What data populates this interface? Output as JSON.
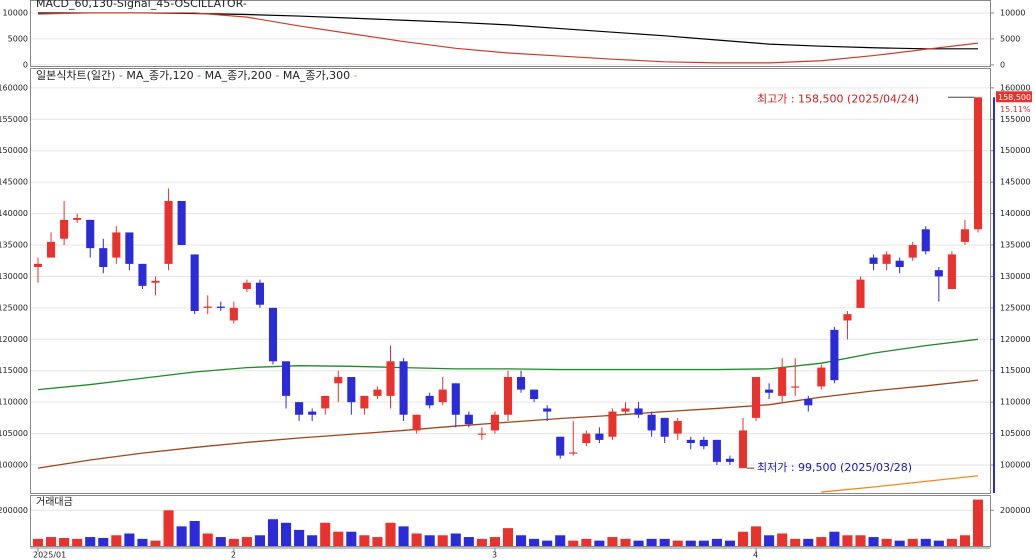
{
  "chart_data": [
    {
      "type": "line",
      "title": "MACD_60,130-Signal_45-OSCILLATOR-",
      "x": [
        0,
        4,
        8,
        12,
        16,
        20,
        24,
        28,
        32,
        36,
        40,
        44,
        48,
        52,
        56,
        60,
        64,
        68,
        72
      ],
      "series": [
        {
          "color": "#000000",
          "values": [
            10000,
            10000,
            10000,
            9900,
            9700,
            9400,
            9000,
            8600,
            8200,
            7700,
            7000,
            6300,
            5600,
            4800,
            4000,
            3600,
            3300,
            3100,
            3100
          ]
        },
        {
          "color": "#d03a2a",
          "values": [
            9800,
            10000,
            10000,
            10000,
            9200,
            7500,
            6000,
            4500,
            3200,
            2300,
            1700,
            1100,
            600,
            400,
            400,
            800,
            1800,
            3000,
            4200
          ]
        }
      ],
      "ylim": [
        -400,
        12300
      ],
      "yticks": [
        0,
        5000,
        10000
      ]
    },
    {
      "type": "candlestick",
      "title": "일본식차트(일간)",
      "categories": [
        "2025/01",
        null,
        null,
        null,
        null,
        null,
        null,
        null,
        null,
        null,
        null,
        null,
        null,
        null,
        null,
        "2",
        null,
        null,
        null,
        null,
        null,
        null,
        null,
        null,
        null,
        null,
        null,
        null,
        null,
        null,
        null,
        null,
        null,
        null,
        null,
        "3",
        null,
        null,
        null,
        null,
        null,
        null,
        null,
        null,
        null,
        null,
        null,
        null,
        null,
        null,
        null,
        null,
        null,
        null,
        null,
        "4",
        null,
        null,
        null,
        null,
        null,
        null,
        null,
        null,
        null,
        null,
        null,
        null,
        null,
        null,
        null,
        null,
        null
      ],
      "open": [
        131500,
        133000,
        136000,
        139000,
        139000,
        134500,
        133000,
        137000,
        132000,
        129000,
        132000,
        142000,
        133500,
        125000,
        125200,
        123000,
        128000,
        129000,
        125000,
        116500,
        110000,
        108500,
        109000,
        113000,
        114000,
        109000,
        111000,
        111000,
        116500,
        105500,
        111000,
        110000,
        113000,
        108000,
        105000,
        105500,
        108000,
        114000,
        112000,
        109000,
        104500,
        102000,
        103500,
        105000,
        104500,
        108500,
        109000,
        108000,
        107500,
        105000,
        104000,
        104000,
        104000,
        101000,
        99500,
        107500,
        112000,
        111000,
        112500,
        110500,
        112500,
        121500,
        123000,
        125000,
        133000,
        132000,
        132500,
        133000,
        137500,
        131000,
        128000,
        135500,
        137500
      ],
      "high": [
        133000,
        137000,
        142000,
        140000,
        139000,
        136000,
        138000,
        137000,
        132000,
        130000,
        144000,
        142000,
        133500,
        127000,
        126000,
        126000,
        129500,
        129500,
        125000,
        116500,
        110000,
        109000,
        111000,
        115000,
        114000,
        111000,
        112500,
        119000,
        117000,
        108000,
        111500,
        114000,
        113000,
        108500,
        106000,
        108500,
        115000,
        115000,
        112000,
        109500,
        104500,
        107000,
        105500,
        106000,
        109000,
        110000,
        110000,
        108500,
        107500,
        107500,
        104500,
        104500,
        104000,
        101500,
        107500,
        114000,
        113000,
        117000,
        117000,
        111000,
        116000,
        122000,
        124500,
        130000,
        133500,
        134000,
        133000,
        135500,
        138000,
        131500,
        134000,
        139000,
        158500
      ],
      "low": [
        129000,
        133000,
        135000,
        138500,
        133000,
        130500,
        132000,
        131000,
        128000,
        127000,
        131000,
        135000,
        124000,
        124000,
        124500,
        122500,
        127500,
        125000,
        116000,
        109000,
        107000,
        107000,
        108000,
        110000,
        108000,
        108000,
        110500,
        109000,
        107000,
        105000,
        109000,
        109500,
        106000,
        106000,
        104000,
        105000,
        107000,
        111500,
        110000,
        107000,
        101000,
        101500,
        103000,
        103500,
        104000,
        108000,
        107500,
        104500,
        103500,
        104000,
        102500,
        102500,
        100000,
        100000,
        99500,
        107000,
        110500,
        110000,
        111000,
        108500,
        112000,
        113000,
        120000,
        125000,
        131000,
        131000,
        130500,
        132500,
        133500,
        126000,
        128000,
        135000,
        137000
      ],
      "close": [
        132000,
        135500,
        139000,
        139300,
        134500,
        131500,
        137000,
        132000,
        128500,
        129300,
        142000,
        135000,
        124500,
        125200,
        125000,
        125000,
        129000,
        125500,
        116500,
        111000,
        108000,
        108000,
        111000,
        114000,
        110000,
        111000,
        112000,
        116500,
        108000,
        108000,
        109500,
        112000,
        108000,
        106500,
        105000,
        108000,
        114000,
        112000,
        110500,
        108500,
        101500,
        102000,
        105000,
        104000,
        108500,
        109000,
        108000,
        105500,
        104500,
        107000,
        103500,
        103000,
        100500,
        100500,
        105500,
        114000,
        111500,
        115500,
        112500,
        109500,
        115500,
        113500,
        124000,
        129500,
        132000,
        133500,
        131500,
        135000,
        134000,
        130000,
        133500,
        137500,
        158500
      ],
      "up_color": "#e8322d",
      "down_color": "#2b2bd8",
      "overlays": [
        {
          "name": "MA_종가,120",
          "color": "#1f8a2a",
          "x": [
            0,
            4,
            8,
            12,
            16,
            20,
            24,
            28,
            32,
            36,
            40,
            44,
            48,
            52,
            56,
            60,
            64,
            68,
            72
          ],
          "values": [
            112000,
            112800,
            113800,
            114800,
            115500,
            115800,
            115700,
            115500,
            115300,
            115300,
            115200,
            115200,
            115200,
            115200,
            115300,
            116200,
            117800,
            119000,
            120000
          ]
        },
        {
          "name": "MA_종가,200",
          "color": "#a0461c",
          "x": [
            0,
            4,
            8,
            12,
            16,
            20,
            24,
            28,
            32,
            36,
            40,
            44,
            48,
            52,
            56,
            60,
            64,
            68,
            72
          ],
          "values": [
            99500,
            100800,
            101900,
            102800,
            103600,
            104300,
            104900,
            105500,
            106200,
            106800,
            107400,
            107900,
            108500,
            109000,
            109600,
            110800,
            111800,
            112600,
            113500
          ]
        },
        {
          "name": "MA_종가,300",
          "color": "#f08a1e",
          "x": [
            60,
            64,
            68,
            72
          ],
          "values": [
            95700,
            96500,
            97400,
            98300
          ]
        }
      ],
      "annotations": [
        {
          "text": "최고가 : 158,500 (2025/04/24)",
          "color": "#d0201a"
        },
        {
          "text": "최저가 : 99,500 (2025/03/28)",
          "color": "#1a1aa8"
        }
      ],
      "last_price_label": "158,500",
      "change_label": "15.11%",
      "ylim": [
        95550,
        163000
      ],
      "yticks": [
        100000,
        105000,
        110000,
        115000,
        120000,
        125000,
        130000,
        135000,
        140000,
        145000,
        150000,
        155000,
        160000
      ]
    },
    {
      "type": "bar",
      "title": "거래대금",
      "values": [
        40000,
        50000,
        45000,
        40000,
        50000,
        45000,
        60000,
        70000,
        40000,
        30000,
        200000,
        110000,
        140000,
        70000,
        50000,
        40000,
        50000,
        60000,
        150000,
        130000,
        90000,
        60000,
        130000,
        80000,
        80000,
        60000,
        50000,
        130000,
        110000,
        70000,
        60000,
        60000,
        70000,
        50000,
        40000,
        50000,
        100000,
        60000,
        40000,
        30000,
        60000,
        30000,
        40000,
        30000,
        50000,
        40000,
        30000,
        40000,
        40000,
        30000,
        30000,
        30000,
        40000,
        30000,
        80000,
        110000,
        60000,
        70000,
        40000,
        40000,
        50000,
        80000,
        60000,
        60000,
        50000,
        40000,
        30000,
        40000,
        40000,
        30000,
        40000,
        60000,
        260000
      ],
      "ylim": [
        0,
        280000
      ],
      "yticks": [
        200000
      ]
    }
  ]
}
